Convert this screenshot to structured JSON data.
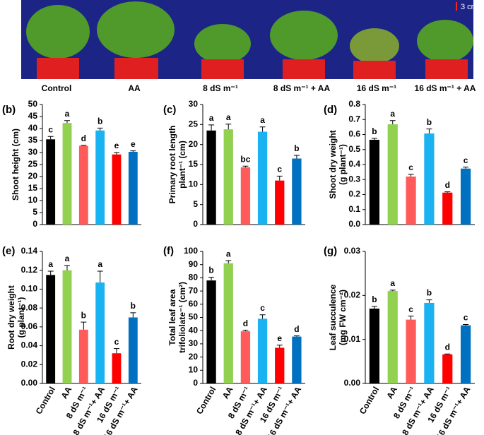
{
  "photo": {
    "panel_label": "(a)",
    "scale": "3 cm",
    "labels": [
      "Control",
      "AA",
      "8 dS m⁻¹",
      "8 dS m⁻¹ + AA",
      "16 dS m⁻¹",
      "16 dS m⁻¹ + AA"
    ]
  },
  "chart_data": [
    {
      "type": "bar",
      "panel_label": "(b)",
      "ylabel": [
        "Shoot height (cm)"
      ],
      "categories": [
        null,
        null,
        null,
        null,
        null,
        null
      ],
      "values": [
        35.5,
        42.3,
        32.8,
        39.2,
        29.2,
        30.3
      ],
      "errors": [
        1.2,
        1.0,
        0.2,
        1.0,
        0.8,
        0.4
      ],
      "annotations": [
        "c",
        "a",
        "d",
        "b",
        "e",
        "e"
      ],
      "colors": [
        "#000000",
        "#92d050",
        "#ff5b5b",
        "#1ab2f0",
        "#ff0000",
        "#0070c0"
      ],
      "ylim": [
        0,
        50
      ],
      "yticks": [
        0,
        5,
        10,
        15,
        20,
        25,
        30,
        35,
        40,
        45,
        50
      ]
    },
    {
      "type": "bar",
      "panel_label": "(c)",
      "ylabel": [
        "Primary root length",
        "plant⁻¹ (cm)"
      ],
      "categories": [
        null,
        null,
        null,
        null,
        null,
        null
      ],
      "values": [
        23.5,
        23.8,
        14.3,
        23.2,
        11.0,
        16.5
      ],
      "errors": [
        1.4,
        1.3,
        0.3,
        1.2,
        1.1,
        0.8
      ],
      "annotations": [
        "a",
        "a",
        "bc",
        "a",
        "c",
        "b"
      ],
      "colors": [
        "#000000",
        "#92d050",
        "#ff5b5b",
        "#1ab2f0",
        "#ff0000",
        "#0070c0"
      ],
      "ylim": [
        0,
        30
      ],
      "yticks": [
        0,
        5,
        10,
        15,
        20,
        25,
        30
      ]
    },
    {
      "type": "bar",
      "panel_label": "(d)",
      "ylabel": [
        "Shoot dry weight",
        "(g plant⁻¹)"
      ],
      "categories": [
        null,
        null,
        null,
        null,
        null,
        null
      ],
      "values": [
        0.565,
        0.668,
        0.32,
        0.607,
        0.213,
        0.373
      ],
      "errors": [
        0.01,
        0.025,
        0.015,
        0.03,
        0.005,
        0.01
      ],
      "annotations": [
        "b",
        "a",
        "c",
        "b",
        "d",
        "c"
      ],
      "colors": [
        "#000000",
        "#92d050",
        "#ff5b5b",
        "#1ab2f0",
        "#ff0000",
        "#0070c0"
      ],
      "ylim": [
        0,
        0.8
      ],
      "yticks": [
        {
          "value": 0,
          "label": "0.0"
        },
        0.1,
        0.2,
        0.3,
        0.4,
        0.5,
        0.6,
        0.7,
        0.8
      ]
    },
    {
      "type": "bar",
      "panel_label": "(e)",
      "ylabel": [
        "Root dry weight",
        "(g plant⁻¹)"
      ],
      "categories": [
        "Control",
        "AA",
        "8 dS m⁻¹",
        "8 dS m⁻¹+ AA",
        "16 dS m⁻¹",
        "16 dS m⁻¹+ AA"
      ],
      "values": [
        0.115,
        0.12,
        0.057,
        0.107,
        0.032,
        0.07
      ],
      "errors": [
        0.004,
        0.005,
        0.008,
        0.012,
        0.005,
        0.005
      ],
      "annotations": [
        "a",
        "a",
        "b",
        "a",
        "c",
        "b"
      ],
      "colors": [
        "#000000",
        "#92d050",
        "#ff5b5b",
        "#1ab2f0",
        "#ff0000",
        "#0070c0"
      ],
      "ylim": [
        0,
        0.14
      ],
      "yticks": [
        {
          "value": 0,
          "label": "0.00"
        },
        {
          "value": 0.02,
          "label": "0.02"
        },
        {
          "value": 0.04,
          "label": "0.04"
        },
        {
          "value": 0.06,
          "label": "0.06"
        },
        {
          "value": 0.08,
          "label": "0.08"
        },
        {
          "value": 0.1,
          "label": "0.10"
        },
        {
          "value": 0.12,
          "label": "0.12"
        },
        {
          "value": 0.14,
          "label": "0.14"
        }
      ]
    },
    {
      "type": "bar",
      "panel_label": "(f)",
      "ylabel": [
        "Total leaf area",
        "trifoliolate⁻¹ (cm²)"
      ],
      "categories": [
        "Control",
        "AA",
        "8 dS m⁻¹",
        "8 dS m⁻¹+ AA",
        "16 dS m⁻¹",
        "16 dS m⁻¹+ AA"
      ],
      "values": [
        78,
        91,
        39.5,
        49,
        27,
        35.5
      ],
      "errors": [
        2.5,
        2,
        0.8,
        3,
        2,
        0.5
      ],
      "annotations": [
        "b",
        "a",
        "d",
        "c",
        "e",
        "d"
      ],
      "colors": [
        "#000000",
        "#92d050",
        "#ff5b5b",
        "#1ab2f0",
        "#ff0000",
        "#0070c0"
      ],
      "ylim": [
        0,
        100
      ],
      "yticks": [
        0,
        10,
        20,
        30,
        40,
        50,
        60,
        70,
        80,
        90,
        100
      ]
    },
    {
      "type": "bar",
      "panel_label": "(g)",
      "ylabel": [
        "Leaf succulence",
        "(mg FW cm⁻²)"
      ],
      "categories": [
        "Control",
        "AA",
        "8 dS m⁻¹",
        "8 dS m⁻¹+ AA",
        "16 dS m⁻¹",
        "16 dS m⁻¹+ AA"
      ],
      "values": [
        0.017,
        0.021,
        0.0145,
        0.0183,
        0.0066,
        0.0132
      ],
      "errors": [
        0.0005,
        0.0002,
        0.0008,
        0.0007,
        0.0001,
        0.0002
      ],
      "annotations": [
        "b",
        "a",
        "c",
        "b",
        "d",
        "c"
      ],
      "colors": [
        "#000000",
        "#92d050",
        "#ff5b5b",
        "#1ab2f0",
        "#ff0000",
        "#0070c0"
      ],
      "ylim": [
        0,
        0.03
      ],
      "yticks": [
        {
          "value": 0,
          "label": "0.00"
        },
        {
          "value": 0.01,
          "label": "0.01"
        },
        {
          "value": 0.02,
          "label": "0.02"
        },
        {
          "value": 0.03,
          "label": "0.03"
        }
      ]
    }
  ]
}
